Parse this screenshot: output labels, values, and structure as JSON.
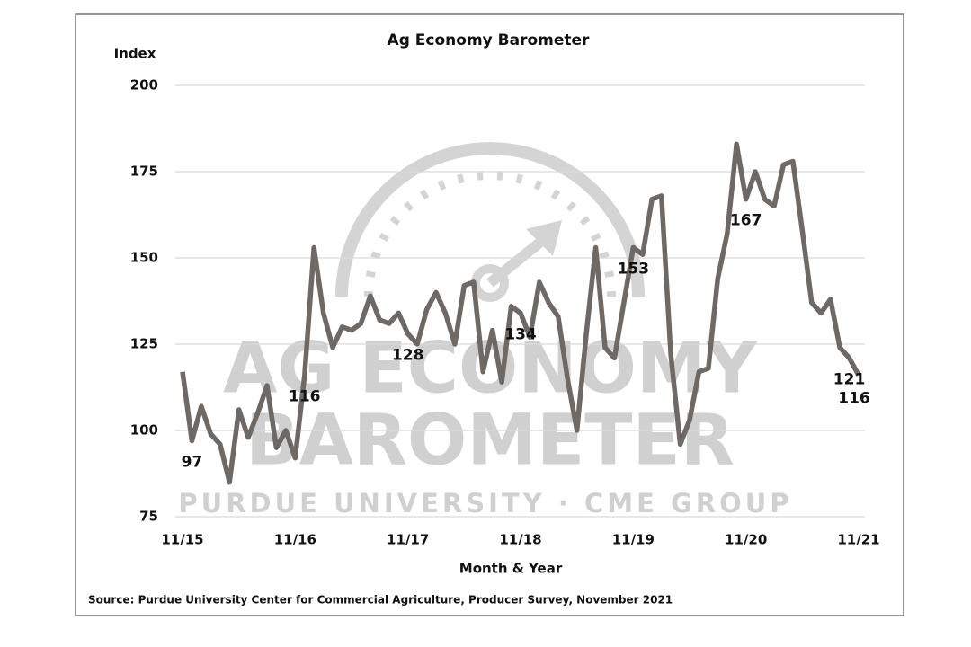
{
  "chart_data": {
    "type": "line",
    "title": "Ag Economy Barometer",
    "y_label": "Index",
    "x_label": "Month & Year",
    "source": "Source: Purdue University Center for Commercial Agriculture, Producer Survey, November 2021",
    "watermark": [
      "AG ECONOMY",
      "BAROMETER",
      "PURDUE UNIVERSITY  ·  CME GROUP"
    ],
    "categories": [
      "11/15",
      null,
      null,
      null,
      null,
      null,
      null,
      null,
      null,
      null,
      null,
      null,
      "11/16",
      null,
      null,
      null,
      null,
      null,
      null,
      null,
      null,
      null,
      null,
      null,
      "11/17",
      null,
      null,
      null,
      null,
      null,
      null,
      null,
      null,
      null,
      null,
      null,
      "11/18",
      null,
      null,
      null,
      null,
      null,
      null,
      null,
      null,
      null,
      null,
      null,
      "11/19",
      null,
      null,
      null,
      null,
      null,
      null,
      null,
      null,
      null,
      null,
      null,
      "11/20",
      null,
      null,
      null,
      null,
      null,
      null,
      null,
      null,
      null,
      null,
      null,
      "11/21"
    ],
    "series": [
      {
        "name": "Index",
        "color": "#6e6964",
        "values": [
          117,
          97,
          107,
          99,
          96,
          85,
          106,
          98,
          105,
          113,
          95,
          100,
          92,
          116,
          153,
          134,
          124,
          130,
          129,
          131,
          139,
          132,
          131,
          134,
          128,
          125,
          135,
          140,
          134,
          125,
          142,
          143,
          117,
          129,
          114,
          136,
          134,
          127,
          143,
          137,
          133,
          115,
          100,
          128,
          153,
          124,
          121,
          137,
          153,
          151,
          167,
          168,
          122,
          96,
          103,
          117,
          118,
          144,
          157,
          183,
          167,
          175,
          167,
          165,
          177,
          178,
          158,
          137,
          134,
          138,
          124,
          121,
          116
        ],
        "value_labels": [
          null,
          "97",
          null,
          null,
          null,
          null,
          null,
          null,
          null,
          null,
          null,
          null,
          null,
          "116",
          null,
          null,
          null,
          null,
          null,
          null,
          null,
          null,
          null,
          null,
          "128",
          null,
          null,
          null,
          null,
          null,
          null,
          null,
          null,
          null,
          null,
          null,
          "134",
          null,
          null,
          null,
          null,
          null,
          null,
          null,
          null,
          null,
          null,
          null,
          "153",
          null,
          null,
          null,
          null,
          null,
          null,
          null,
          null,
          null,
          null,
          null,
          "167",
          null,
          null,
          null,
          null,
          null,
          null,
          null,
          null,
          null,
          null,
          "121",
          "116"
        ]
      }
    ],
    "ylim": [
      75,
      200
    ],
    "yticks": [
      75,
      100,
      125,
      150,
      175,
      200
    ],
    "grid": true
  }
}
